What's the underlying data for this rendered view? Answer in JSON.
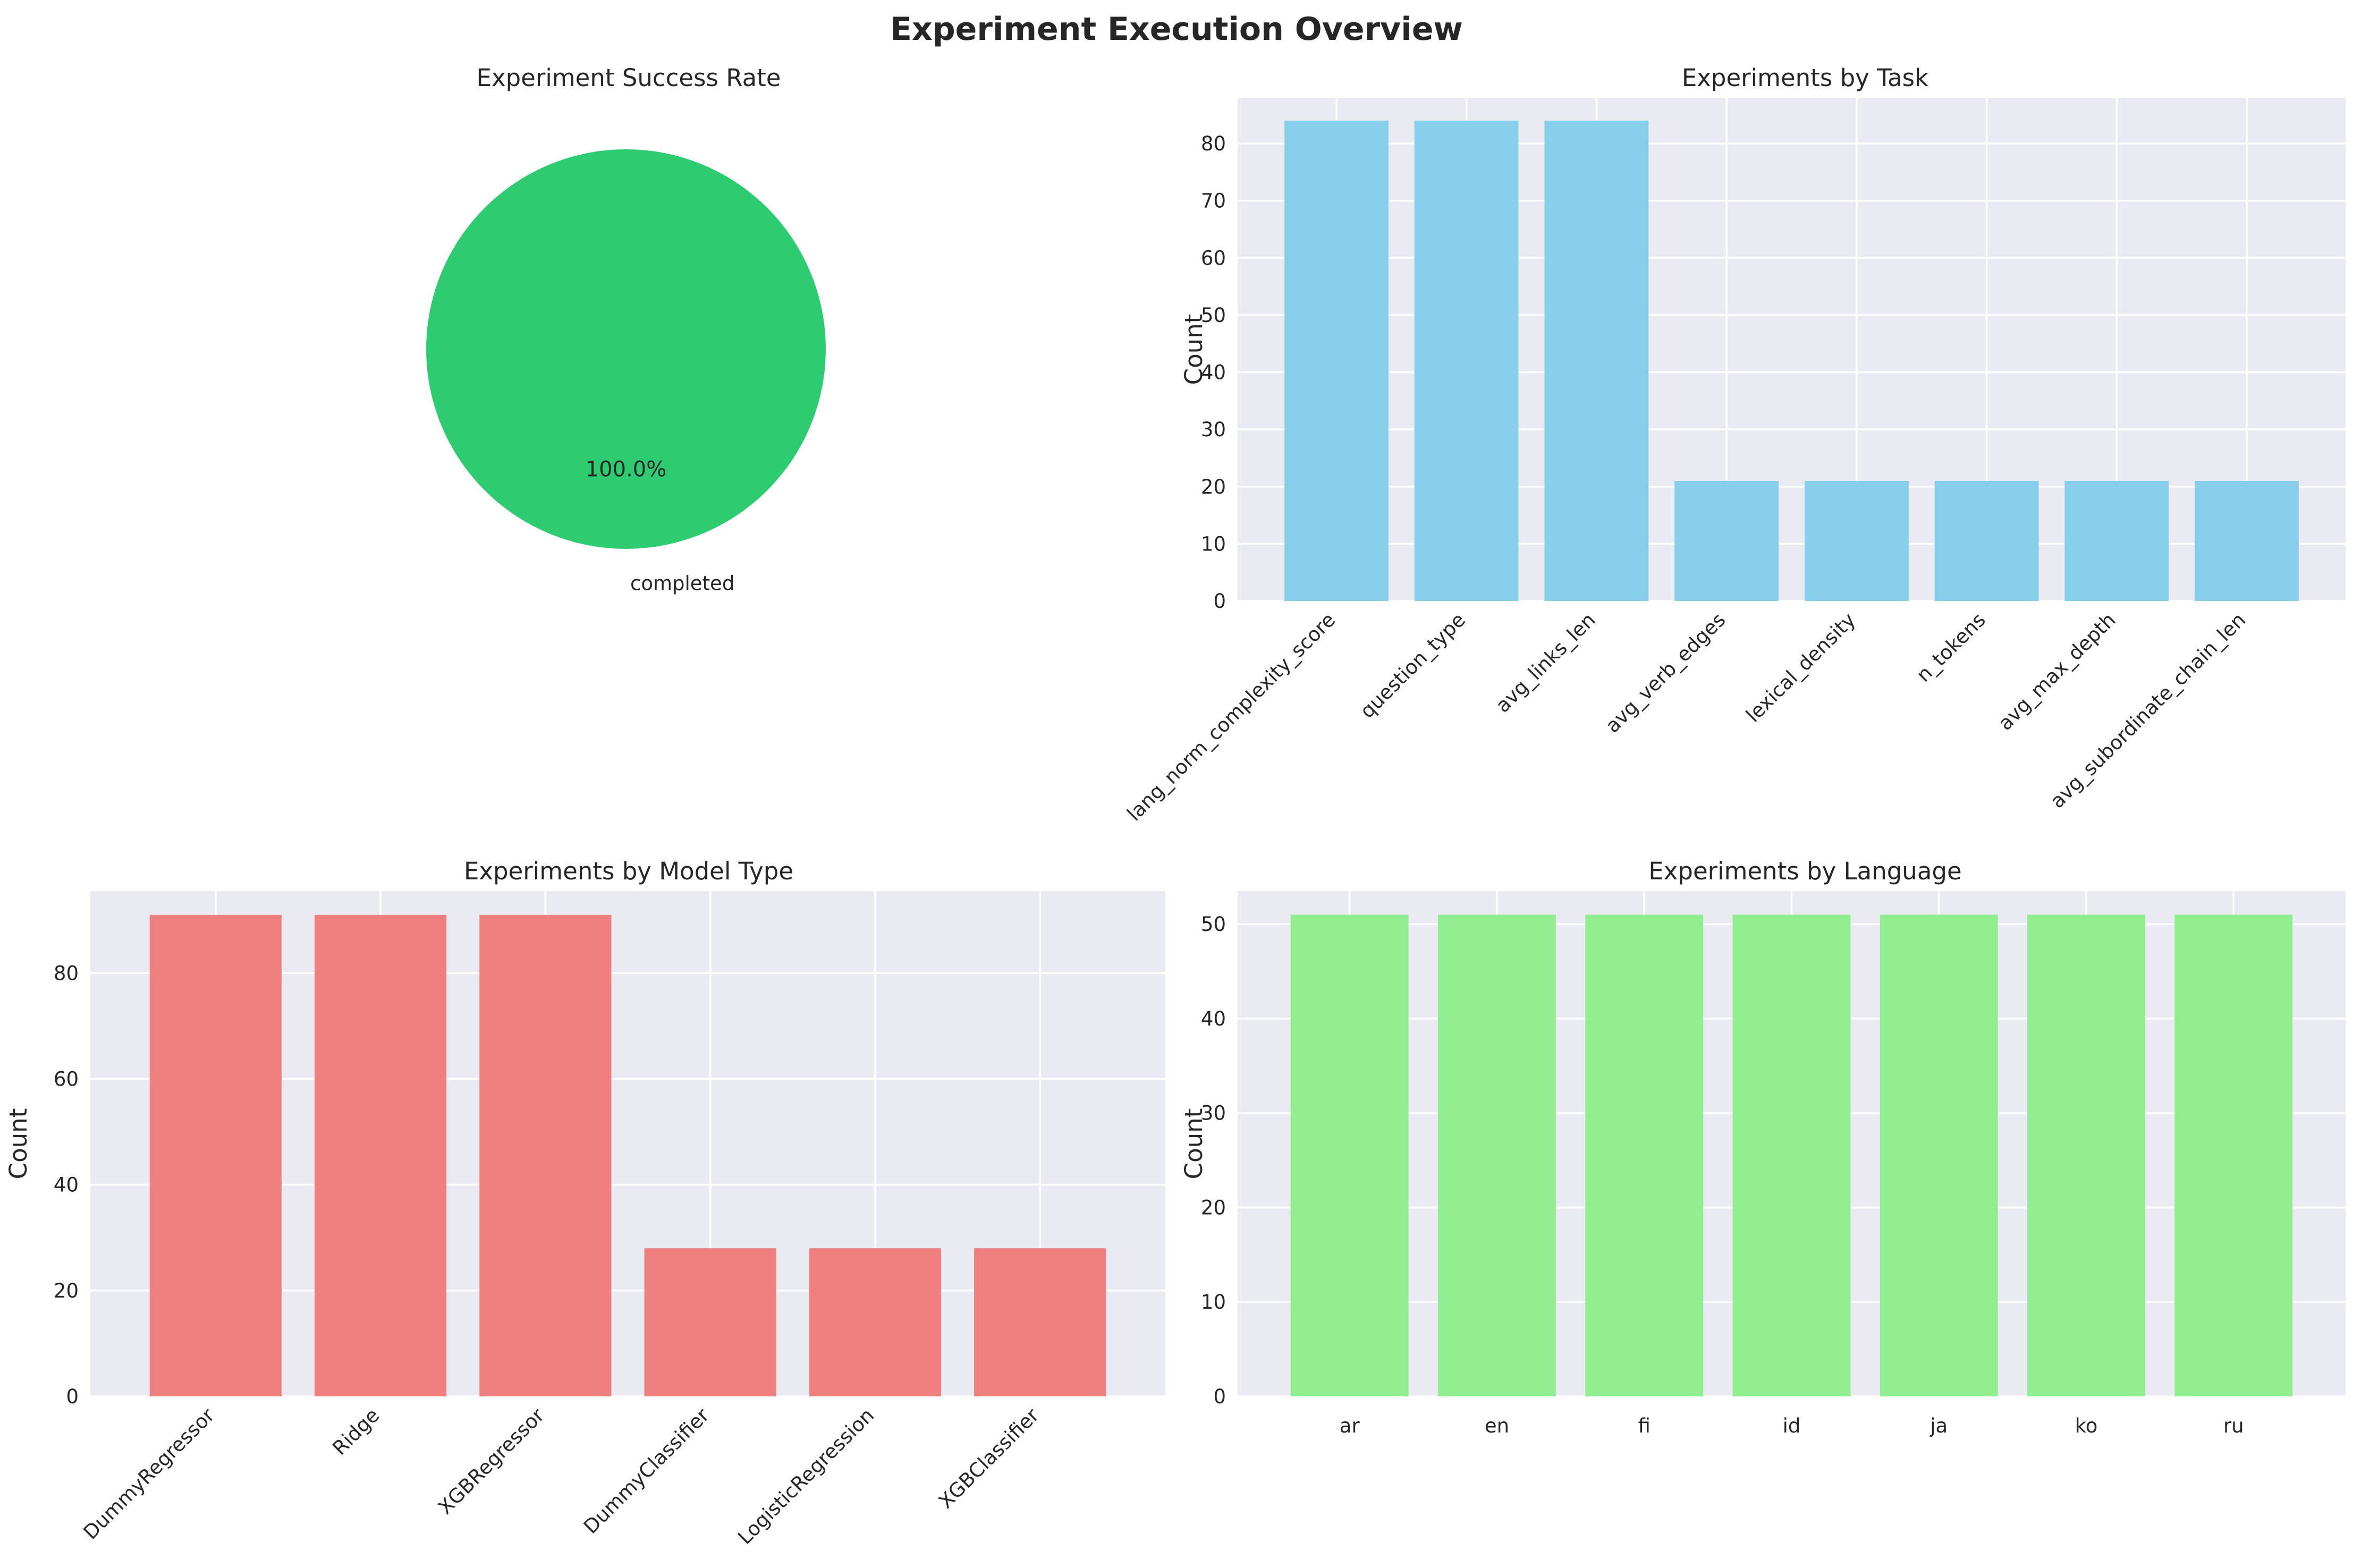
{
  "figure": {
    "title": "Experiment Execution Overview"
  },
  "chart_data": [
    {
      "type": "pie",
      "title": "Experiment Success Rate",
      "labels": [
        "completed"
      ],
      "values": [
        100.0
      ],
      "autopct": [
        "100.0%"
      ],
      "colors": [
        "#2ecc71"
      ]
    },
    {
      "type": "bar",
      "title": "Experiments by Task",
      "xlabel": "",
      "ylabel": "Count",
      "categories": [
        "lang_norm_complexity_score",
        "question_type",
        "avg_links_len",
        "avg_verb_edges",
        "lexical_density",
        "n_tokens",
        "avg_max_depth",
        "avg_subordinate_chain_len"
      ],
      "values": [
        84,
        84,
        84,
        21,
        21,
        21,
        21,
        21
      ],
      "ylim": [
        0,
        88
      ],
      "yticks": [
        0,
        10,
        20,
        30,
        40,
        50,
        60,
        70,
        80
      ],
      "color": "#87ceeb",
      "tick_rotation": 45
    },
    {
      "type": "bar",
      "title": "Experiments by Model Type",
      "xlabel": "",
      "ylabel": "Count",
      "categories": [
        "DummyRegressor",
        "Ridge",
        "XGBRegressor",
        "DummyClassifier",
        "LogisticRegression",
        "XGBClassifier"
      ],
      "values": [
        91,
        91,
        91,
        28,
        28,
        28
      ],
      "ylim": [
        0,
        95.5
      ],
      "yticks": [
        0,
        20,
        40,
        60,
        80
      ],
      "color": "#f08080",
      "tick_rotation": 45
    },
    {
      "type": "bar",
      "title": "Experiments by Language",
      "xlabel": "",
      "ylabel": "Count",
      "categories": [
        "ar",
        "en",
        "fi",
        "id",
        "ja",
        "ko",
        "ru"
      ],
      "values": [
        51,
        51,
        51,
        51,
        51,
        51,
        51
      ],
      "ylim": [
        0,
        53.5
      ],
      "yticks": [
        0,
        10,
        20,
        30,
        40,
        50
      ],
      "color": "#90ee90",
      "tick_rotation": 0
    }
  ]
}
